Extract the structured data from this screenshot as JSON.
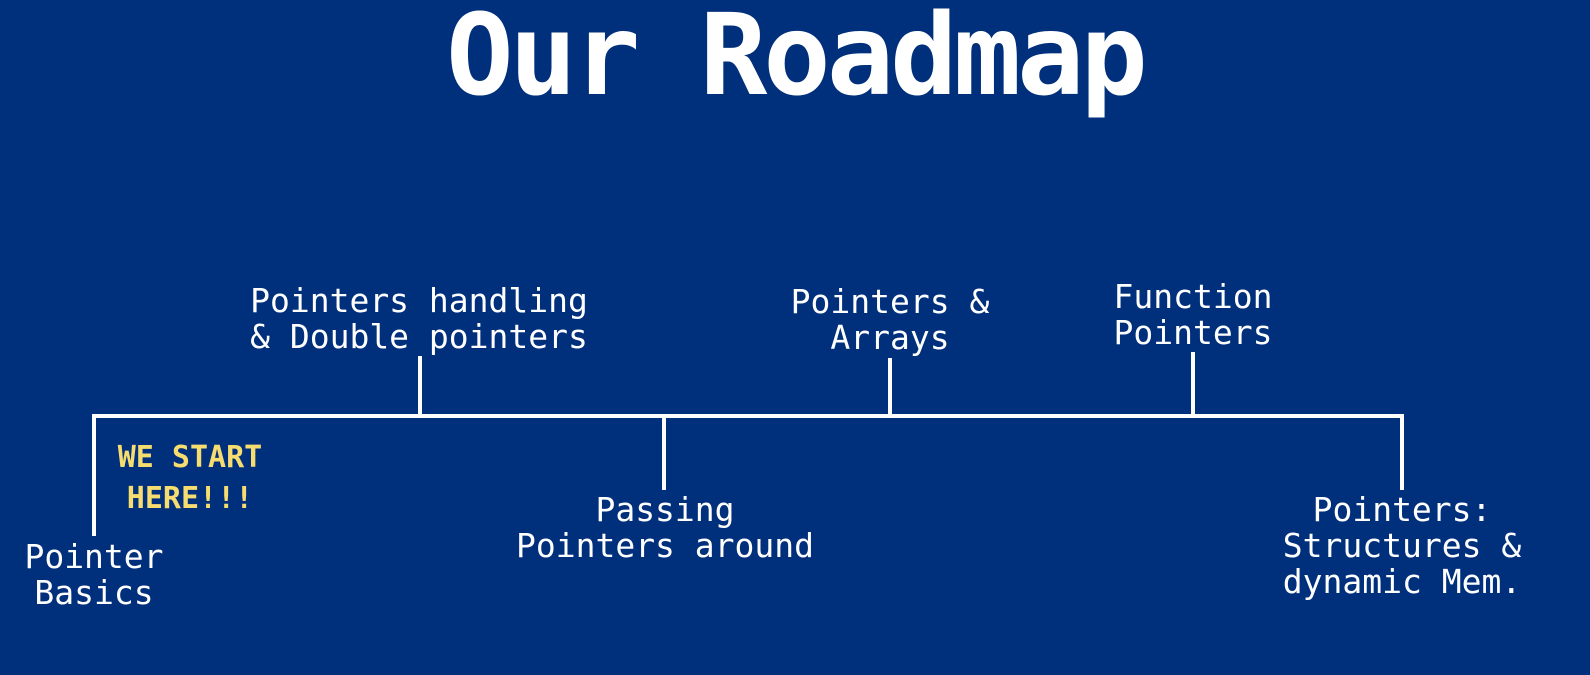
{
  "slide": {
    "title": "Our Roadmap",
    "background_color": "#002f7c",
    "text_color": "#ffffff",
    "line_color": "#ffffff",
    "note_color": "#f7dc6f"
  },
  "roadmap": {
    "start_note": "WE START\nHERE!!!",
    "milestones": [
      {
        "label": "Pointer\nBasics"
      },
      {
        "label": "Pointers handling\n& Double pointers"
      },
      {
        "label": "Passing\nPointers around"
      },
      {
        "label": "Pointers &\nArrays"
      },
      {
        "label": "Function\nPointers"
      },
      {
        "label": "Pointers:\nStructures &\ndynamic Mem."
      }
    ]
  }
}
